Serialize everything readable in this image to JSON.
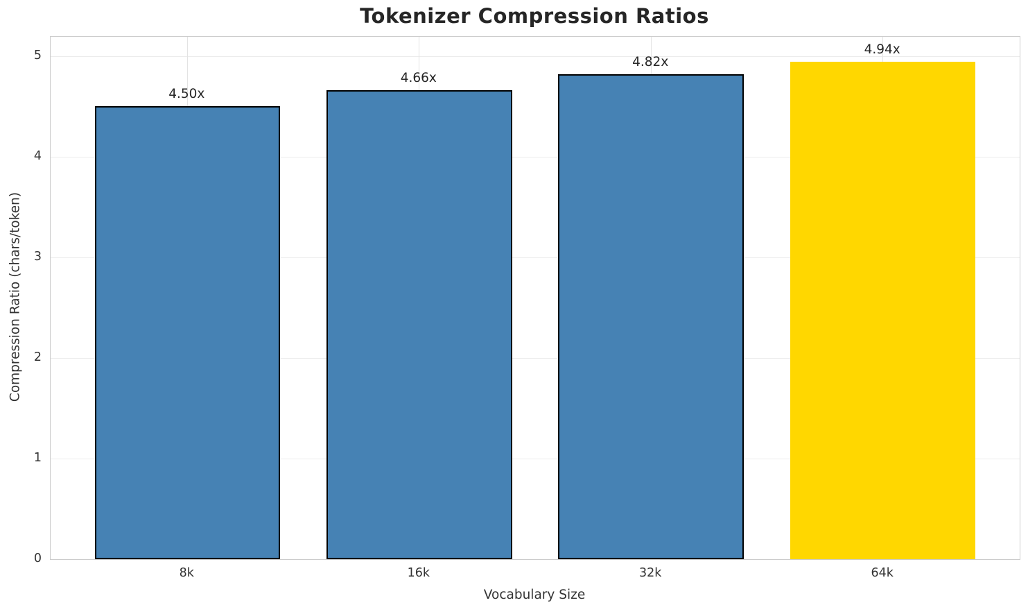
{
  "chart_data": {
    "type": "bar",
    "title": "Tokenizer Compression Ratios",
    "xlabel": "Vocabulary Size",
    "ylabel": "Compression Ratio (chars/token)",
    "categories": [
      "8k",
      "16k",
      "32k",
      "64k"
    ],
    "values": [
      4.5,
      4.66,
      4.82,
      4.94
    ],
    "bar_labels": [
      "4.50x",
      "4.66x",
      "4.82x",
      "4.94x"
    ],
    "yticks": [
      0,
      1,
      2,
      3,
      4,
      5
    ],
    "ylim": [
      0,
      5.19
    ],
    "grid": true,
    "legend_position": "none",
    "highlight_index": 3,
    "colors": {
      "bar_default": "#4682b4",
      "bar_highlight": "#ffd700",
      "bar_edge": "#000000",
      "bar_highlight_edge": "none",
      "grid_line": "#ececec",
      "spine": "#cccccc",
      "title_text": "#262626",
      "label_text": "#333333"
    }
  }
}
